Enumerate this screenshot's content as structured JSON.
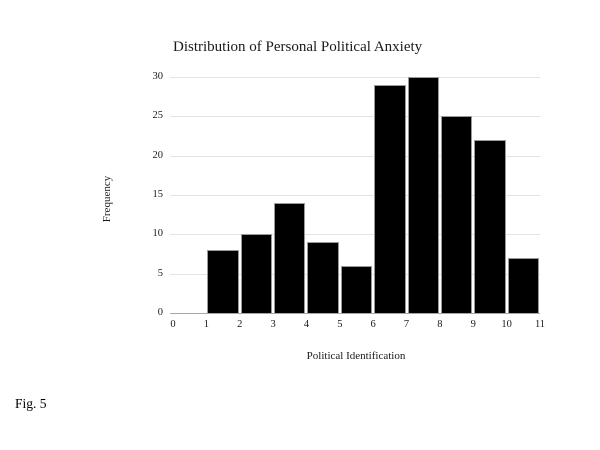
{
  "figure": {
    "caption": "Fig. 5"
  },
  "chart": {
    "title": "Distribution of Personal Political Anxiety",
    "xlabel": "Political Identification",
    "ylabel": "Frequency"
  },
  "chart_data": {
    "type": "bar",
    "subtype": "histogram",
    "title": "Distribution of Personal Political Anxiety",
    "xlabel": "Political Identification",
    "ylabel": "Frequency",
    "bin_edges": [
      1,
      2,
      3,
      4,
      5,
      6,
      7,
      8,
      9,
      10,
      11
    ],
    "values": [
      8,
      10,
      14,
      9,
      6,
      29,
      30,
      25,
      22,
      7
    ],
    "x_ticks": [
      0,
      1,
      2,
      3,
      4,
      5,
      6,
      7,
      8,
      9,
      10,
      11
    ],
    "y_ticks": [
      0,
      5,
      10,
      15,
      20,
      25,
      30
    ],
    "xlim": [
      0,
      11
    ],
    "ylim": [
      0,
      30
    ],
    "grid": "horizontal",
    "legend": "none",
    "bar_color": "#000000",
    "bar_edge_color": "#9a9a9a",
    "gridline_color": "#e4e4e4",
    "axis_line_color": "#a6a6a6"
  }
}
